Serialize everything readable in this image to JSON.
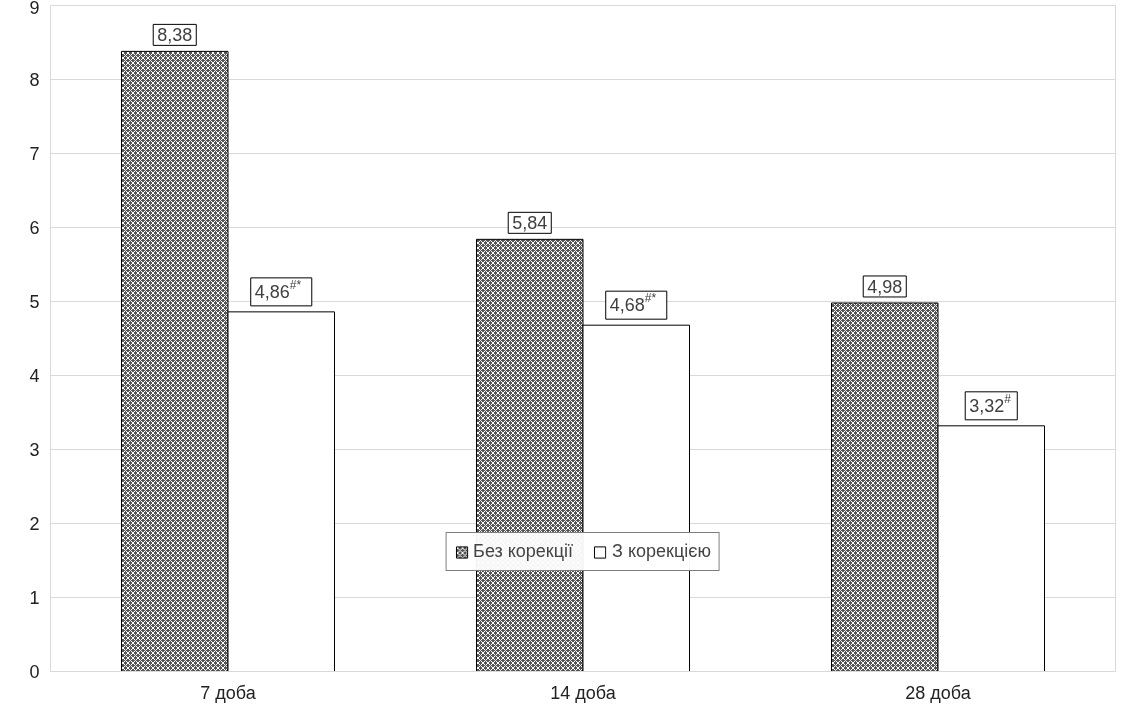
{
  "chart_data": {
    "type": "bar",
    "categories": [
      "7 доба",
      "14 доба",
      "28 доба"
    ],
    "series": [
      {
        "name": "Без корекції",
        "color": "#555555",
        "values": [
          8.38,
          5.84,
          4.98
        ],
        "value_labels": [
          "8,38",
          "5,84",
          "4,98"
        ]
      },
      {
        "name": "З корекцією",
        "color": "#ffffff",
        "values": [
          4.86,
          4.68,
          3.32
        ],
        "value_labels": [
          "4,86$^{#*}$",
          "4,68$^{#*}$",
          "3,32$^{#}$"
        ]
      }
    ],
    "ylim": [
      0,
      9
    ],
    "yticks": [
      0,
      1,
      2,
      3,
      4,
      5,
      6,
      7,
      8,
      9
    ],
    "grid": "y",
    "legend": "bottom"
  }
}
